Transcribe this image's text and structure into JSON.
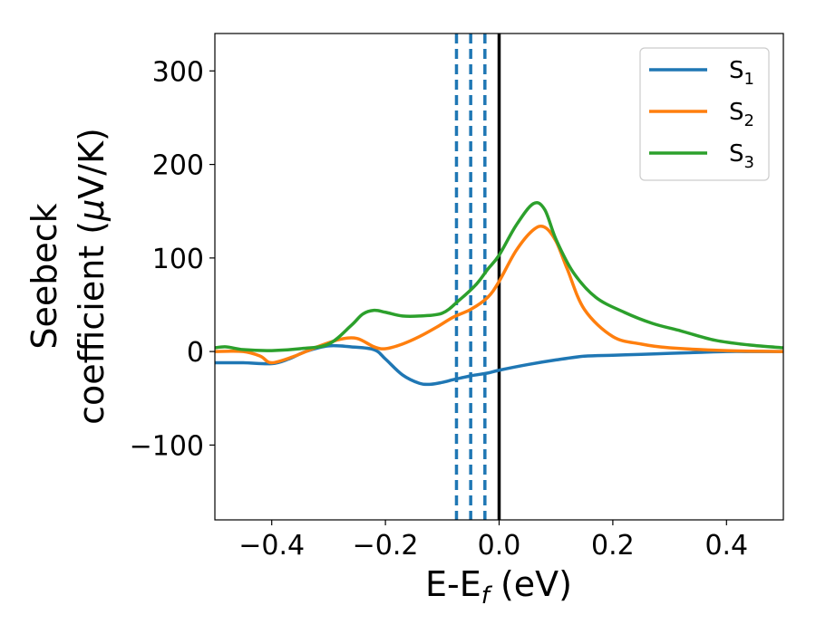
{
  "chart_data": {
    "type": "line",
    "xlabel": {
      "main": "E-E",
      "sub": "f",
      "unit": " (eV)"
    },
    "ylabel": {
      "line1": "Seebeck",
      "line2": "coefficient  (",
      "mu": "μ",
      "line2_end": "V/K)"
    },
    "xlim": [
      -0.5,
      0.5
    ],
    "ylim": [
      -180,
      340
    ],
    "x_ticks": [
      -0.4,
      -0.2,
      0.0,
      0.2,
      0.4
    ],
    "x_tick_labels": [
      "−0.4",
      "−0.2",
      "0.0",
      "0.2",
      "0.4"
    ],
    "y_ticks": [
      -100,
      0,
      100,
      200,
      300
    ],
    "y_tick_labels": [
      "−100",
      "0",
      "100",
      "200",
      "300"
    ],
    "grid": false,
    "legend_position": "top-right",
    "vertical_lines": [
      {
        "x": -0.075,
        "style": "dashed",
        "color": "#1f77b4"
      },
      {
        "x": -0.05,
        "style": "dashed",
        "color": "#1f77b4"
      },
      {
        "x": -0.025,
        "style": "dashed",
        "color": "#1f77b4"
      },
      {
        "x": 0.0,
        "style": "solid",
        "color": "#000000"
      }
    ],
    "series": [
      {
        "name": "S",
        "sub": "1",
        "color": "#1f77b4",
        "x": [
          -0.5,
          -0.45,
          -0.4,
          -0.37,
          -0.34,
          -0.3,
          -0.26,
          -0.22,
          -0.2,
          -0.17,
          -0.14,
          -0.12,
          -0.1,
          -0.08,
          -0.05,
          -0.02,
          0.0,
          0.05,
          0.1,
          0.15,
          0.2,
          0.25,
          0.3,
          0.35,
          0.4,
          0.45,
          0.5
        ],
        "y": [
          -12,
          -12,
          -13,
          -8,
          0,
          6,
          5,
          2,
          -8,
          -25,
          -34,
          -35,
          -33,
          -30,
          -26,
          -23,
          -20,
          -14,
          -9,
          -5,
          -4,
          -3,
          -2,
          -1,
          0,
          0,
          0
        ]
      },
      {
        "name": "S",
        "sub": "2",
        "color": "#ff7f0e",
        "x": [
          -0.5,
          -0.45,
          -0.42,
          -0.4,
          -0.36,
          -0.32,
          -0.28,
          -0.25,
          -0.22,
          -0.2,
          -0.17,
          -0.14,
          -0.11,
          -0.08,
          -0.05,
          -0.02,
          0.0,
          0.03,
          0.06,
          0.08,
          0.1,
          0.12,
          0.15,
          0.2,
          0.25,
          0.3,
          0.4,
          0.5
        ],
        "y": [
          0,
          0,
          -5,
          -12,
          -5,
          5,
          13,
          14,
          5,
          3,
          8,
          16,
          26,
          37,
          45,
          58,
          75,
          108,
          130,
          133,
          118,
          88,
          45,
          16,
          8,
          4,
          1,
          0
        ]
      },
      {
        "name": "S",
        "sub": "3",
        "color": "#2ca02c",
        "x": [
          -0.5,
          -0.48,
          -0.45,
          -0.4,
          -0.35,
          -0.3,
          -0.26,
          -0.24,
          -0.22,
          -0.2,
          -0.17,
          -0.14,
          -0.1,
          -0.07,
          -0.04,
          -0.02,
          0.0,
          0.03,
          0.06,
          0.08,
          0.1,
          0.13,
          0.17,
          0.22,
          0.27,
          0.32,
          0.38,
          0.44,
          0.5
        ],
        "y": [
          4,
          5,
          2,
          1,
          3,
          8,
          28,
          40,
          44,
          42,
          38,
          38,
          41,
          55,
          72,
          88,
          103,
          135,
          158,
          152,
          120,
          85,
          58,
          42,
          30,
          22,
          12,
          7,
          4
        ]
      }
    ]
  }
}
